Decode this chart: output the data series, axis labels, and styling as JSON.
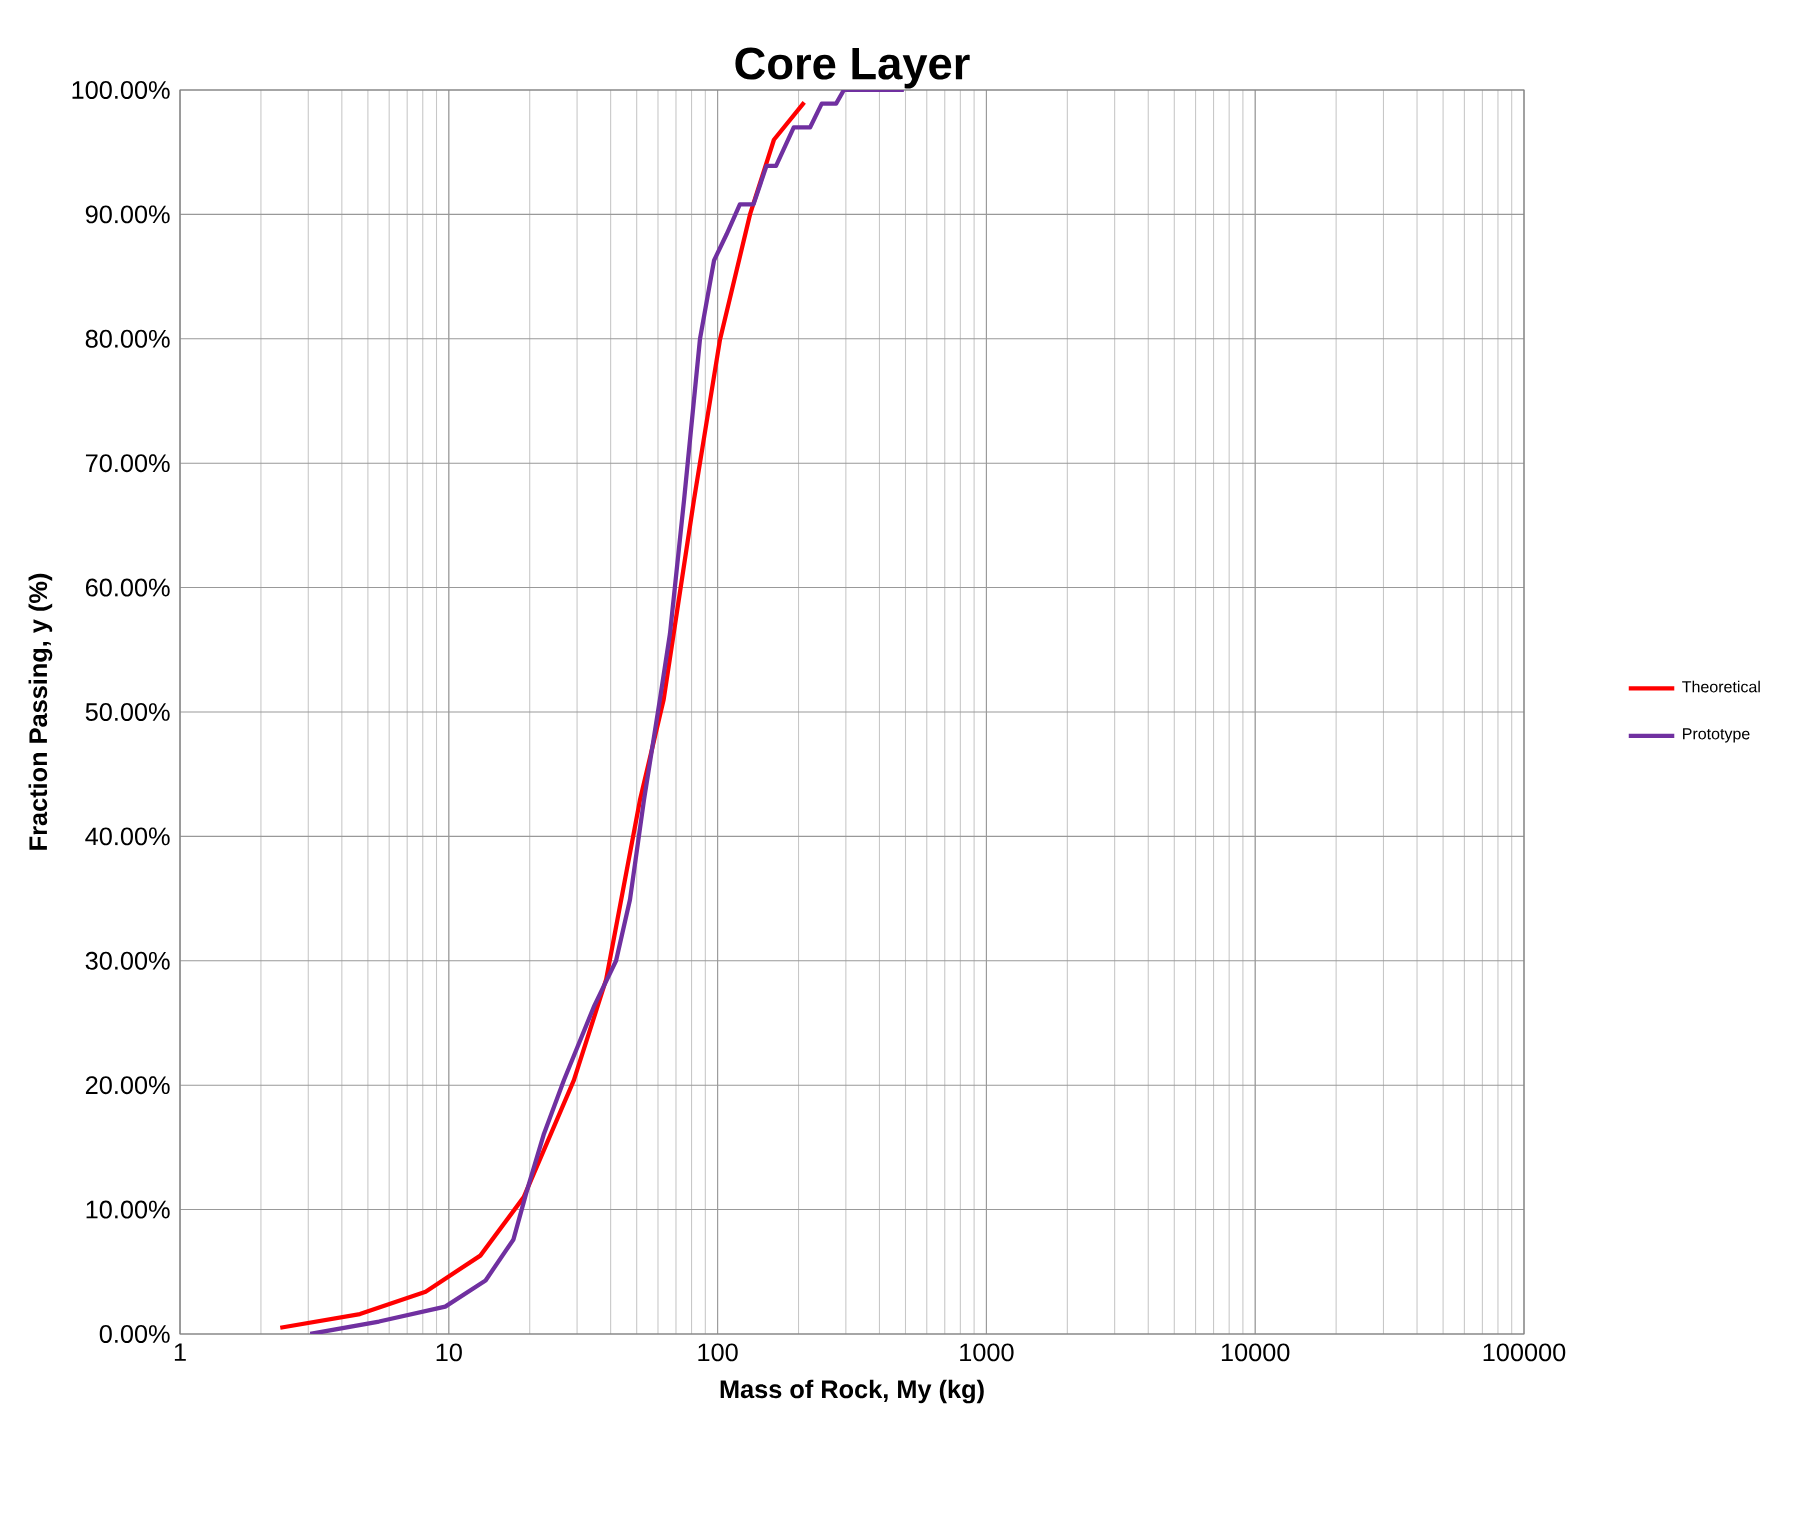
{
  "chart_data": {
    "type": "line",
    "title": "Core Layer",
    "xlabel": "Mass of Rock, My (kg)",
    "ylabel": "Fraction Passing, y (%)",
    "log": "x",
    "grid": true,
    "legend": "right",
    "xlim": [
      1,
      100000
    ],
    "xticks": [
      1,
      10,
      100,
      1000,
      10000,
      100000
    ],
    "ylim": [
      0,
      100
    ],
    "yticks": [
      {
        "value": 0,
        "label": "0.00%"
      },
      {
        "value": 10,
        "label": "10.00%"
      },
      {
        "value": 20,
        "label": "20.00%"
      },
      {
        "value": 30,
        "label": "30.00%"
      },
      {
        "value": 40,
        "label": "40.00%"
      },
      {
        "value": 50,
        "label": "50.00%"
      },
      {
        "value": 60,
        "label": "60.00%"
      },
      {
        "value": 70,
        "label": "70.00%"
      },
      {
        "value": 80,
        "label": "80.00%"
      },
      {
        "value": 90,
        "label": "90.00%"
      },
      {
        "value": 100,
        "label": "100.00%"
      }
    ],
    "series": [
      {
        "name": "Theoretical",
        "color": "#ff0000",
        "x": [
          2.36,
          4.67,
          8.2,
          13.1,
          19,
          29.2,
          38.5,
          51.4,
          63,
          81.6,
          102,
          132,
          162,
          210
        ],
        "values": [
          0.5,
          1.6,
          3.4,
          6.3,
          11,
          20.4,
          28.5,
          42.9,
          51,
          67,
          79.9,
          90,
          96,
          99
        ]
      },
      {
        "name": "Prototype",
        "color": "#7030a0",
        "x": [
          3.05,
          5.5,
          9.7,
          13.7,
          17.4,
          19.4,
          22.6,
          26.8,
          34.8,
          41.9,
          47.2,
          53.2,
          61,
          66.5,
          75,
          86,
          97,
          108,
          121,
          136,
          152,
          165,
          192,
          221,
          244,
          276,
          295,
          493
        ],
        "values": [
          0,
          1,
          2.2,
          4.3,
          7.6,
          11.3,
          16.1,
          20.4,
          26.4,
          30,
          34.9,
          42.9,
          51,
          56.3,
          67,
          80,
          86.3,
          88.4,
          90.8,
          90.8,
          93.9,
          93.9,
          97,
          97,
          98.9,
          98.9,
          100,
          100
        ]
      }
    ]
  }
}
